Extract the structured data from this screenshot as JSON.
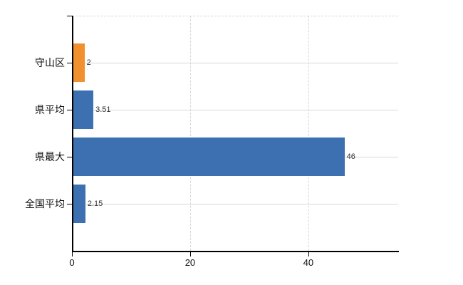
{
  "chart_data": {
    "type": "bar",
    "orientation": "horizontal",
    "title": "",
    "xlabel": "",
    "ylabel": "",
    "categories": [
      "守山区",
      "県平均",
      "県最大",
      "全国平均"
    ],
    "values": [
      2,
      3.51,
      46,
      2.15
    ],
    "value_labels": [
      "2",
      "3.51",
      "46",
      "2.15"
    ],
    "bar_colors": [
      "#f0902f",
      "#3d70b0",
      "#3d70b0",
      "#3d70b0"
    ],
    "xlim": [
      0,
      55.2
    ],
    "x_ticks": [
      0,
      20,
      40
    ],
    "grid": true,
    "legend": false
  },
  "colors": {
    "bar_orange": "#f0902f",
    "bar_blue": "#3d70b0",
    "axis": "#000000",
    "gridline_solid": "#d2dcd2",
    "gridline_dashed": "#d6d6da",
    "value_text": "#333333",
    "label_text": "#111111",
    "background": "#ffffff"
  }
}
